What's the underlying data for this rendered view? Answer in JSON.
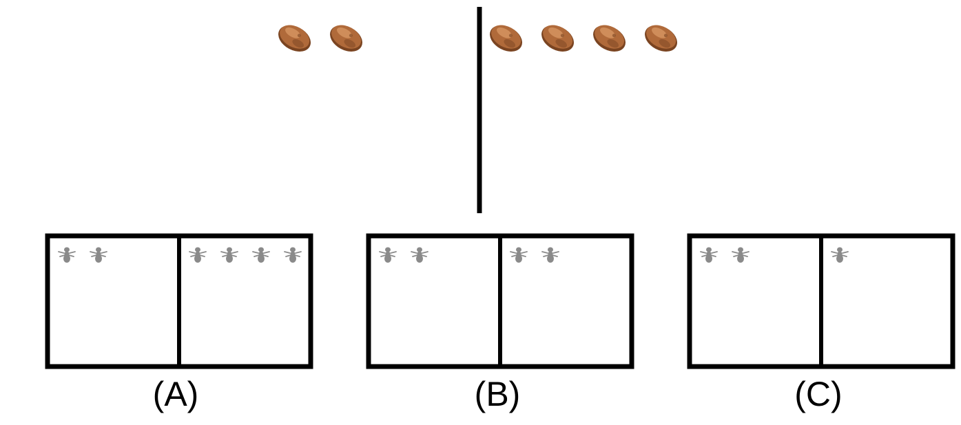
{
  "question": {
    "left_group": {
      "item": "rock",
      "count": 2
    },
    "right_group": {
      "item": "rock",
      "count": 4
    }
  },
  "options": [
    {
      "label": "(A)",
      "left_count": 2,
      "right_count": 4,
      "item": "ant"
    },
    {
      "label": "(B)",
      "left_count": 2,
      "right_count": 2,
      "item": "ant"
    },
    {
      "label": "(C)",
      "left_count": 2,
      "right_count": 1,
      "item": "ant"
    }
  ],
  "colors": {
    "line": "#000000",
    "rock_base": "#b06a3a",
    "rock_dark": "#7a4421",
    "rock_light": "#d99a66",
    "ant": "#8a8a8a"
  },
  "icons": {
    "rock": "rock-icon",
    "ant": "ant-icon"
  }
}
